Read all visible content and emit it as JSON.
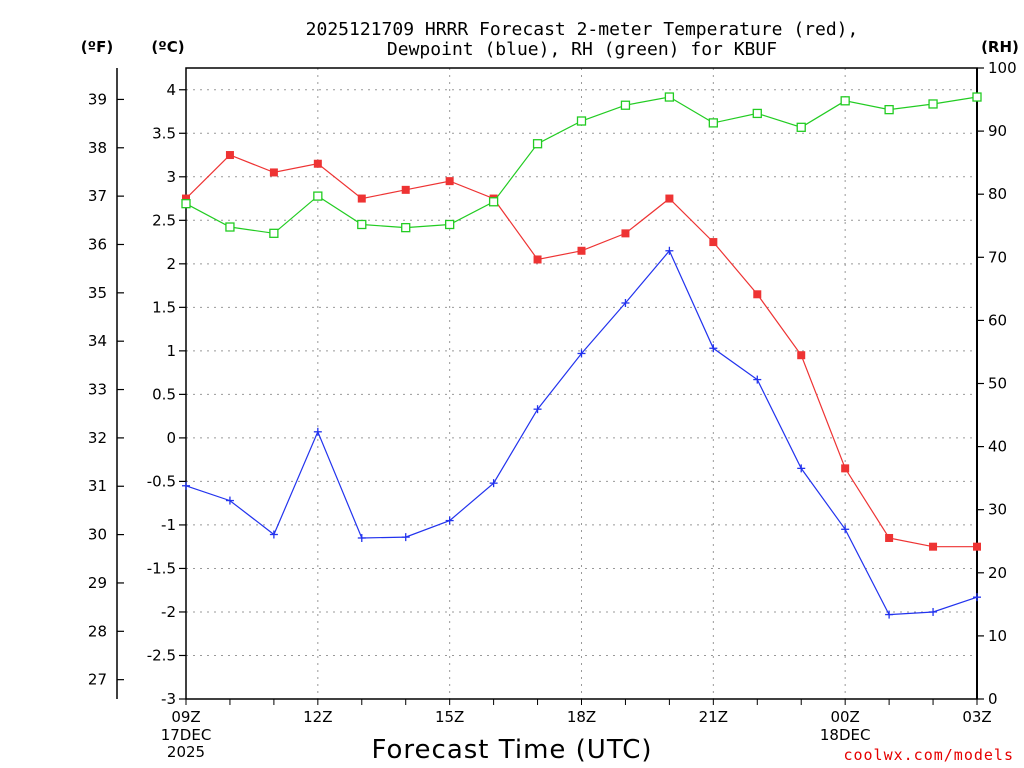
{
  "chart_data": {
    "type": "line",
    "title_line1": "2025121709 HRRR Forecast 2-meter Temperature (red),",
    "title_line2": "Dewpoint (blue), RH (green) for KBUF",
    "xlabel": "Forecast Time (UTC)",
    "credit": "coolwx.com/models",
    "units": {
      "fahrenheit": "(ºF)",
      "celsius": "(ºC)",
      "rh": "(RH)"
    },
    "x_hours": [
      0,
      1,
      2,
      3,
      4,
      5,
      6,
      7,
      8,
      9,
      10,
      11,
      12,
      13,
      14,
      15,
      16,
      17,
      18
    ],
    "x_range": [
      0,
      18
    ],
    "x_ticks": [
      {
        "hour": 0,
        "label": "09Z",
        "date1": "17DEC",
        "date2": "2025"
      },
      {
        "hour": 3,
        "label": "12Z"
      },
      {
        "hour": 6,
        "label": "15Z"
      },
      {
        "hour": 9,
        "label": "18Z"
      },
      {
        "hour": 12,
        "label": "21Z"
      },
      {
        "hour": 15,
        "label": "00Z",
        "date1": "18DEC"
      },
      {
        "hour": 18,
        "label": "03Z"
      }
    ],
    "celsius_range": [
      -3,
      4.25
    ],
    "celsius_ticks": [
      "-3",
      "-2.5",
      "-2",
      "-1.5",
      "-1",
      "-0.5",
      "0",
      "0.5",
      "1",
      "1.5",
      "2",
      "2.5",
      "3",
      "3.5",
      "4"
    ],
    "fahrenheit_ticks": [
      "27",
      "28",
      "29",
      "30",
      "31",
      "32",
      "33",
      "34",
      "35",
      "36",
      "37",
      "38",
      "39"
    ],
    "rh_range": [
      0,
      100
    ],
    "rh_ticks": [
      "0",
      "10",
      "20",
      "30",
      "40",
      "50",
      "60",
      "70",
      "80",
      "90",
      "100"
    ],
    "series": [
      {
        "name": "Temperature",
        "color": "#ee3333",
        "marker": "filled-square",
        "axis": "celsius",
        "values": [
          2.75,
          3.25,
          3.05,
          3.15,
          2.75,
          2.85,
          2.95,
          2.75,
          2.05,
          2.15,
          2.35,
          2.75,
          2.25,
          1.65,
          0.95,
          -0.35,
          -1.15,
          -1.25,
          -1.25
        ]
      },
      {
        "name": "Dewpoint",
        "color": "#2233ee",
        "marker": "plus",
        "axis": "celsius",
        "values": [
          -0.55,
          -0.72,
          -1.11,
          0.07,
          -1.15,
          -1.14,
          -0.95,
          -0.52,
          0.33,
          0.97,
          1.55,
          2.15,
          1.03,
          0.67,
          -0.35,
          -1.05,
          -2.03,
          -2.0,
          -1.83
        ]
      },
      {
        "name": "RH",
        "color": "#22cc22",
        "marker": "open-square",
        "axis": "rh",
        "values": [
          78.5,
          74.8,
          73.8,
          79.7,
          75.2,
          74.7,
          75.2,
          78.8,
          88.0,
          91.6,
          94.1,
          95.4,
          91.3,
          92.8,
          90.6,
          94.8,
          93.4,
          94.3,
          95.4
        ]
      }
    ]
  }
}
